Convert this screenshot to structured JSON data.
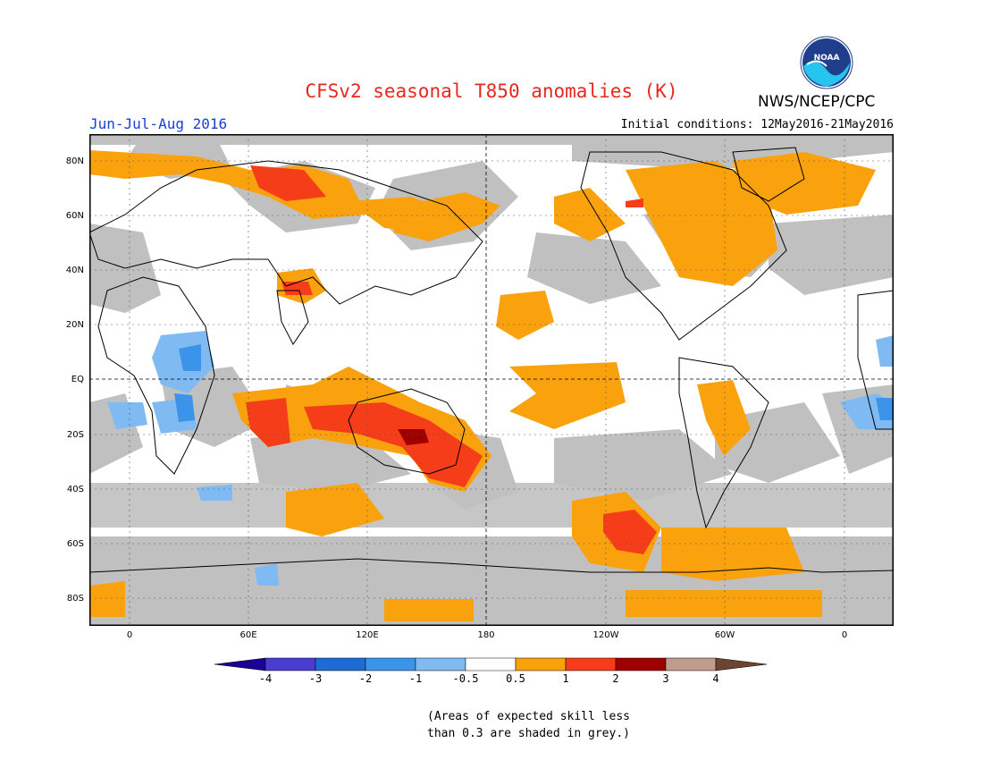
{
  "title": "CFSv2 seasonal T850 anomalies (K)",
  "agency": "NWS/NCEP/CPC",
  "logo_text": "NOAA",
  "season": "Jun-Jul-Aug 2016",
  "initial_conditions": "Initial conditions: 12May2016-21May2016",
  "lat_labels": [
    "80N",
    "60N",
    "40N",
    "20N",
    "EQ",
    "20S",
    "40S",
    "60S",
    "80S"
  ],
  "lon_labels": [
    "0",
    "60E",
    "120E",
    "180",
    "120W",
    "60W",
    "0"
  ],
  "colorbar": {
    "labels": [
      "-4",
      "-3",
      "-2",
      "-1",
      "-0.5",
      "0.5",
      "1",
      "2",
      "3",
      "4"
    ],
    "colors": [
      "#1d0095",
      "#4b3cd0",
      "#1e6ad6",
      "#3c94ea",
      "#7fbaf2",
      "#ffffff",
      "#f9a20e",
      "#f53d1a",
      "#9e0000",
      "#c19b8b",
      "#6d4332"
    ]
  },
  "note_line1": "(Areas of expected skill less",
  "note_line2": "than 0.3 are shaded in grey.)",
  "colors": {
    "grey": "#c0c0c0",
    "orange": "#f9a20e",
    "red": "#f53d1a",
    "darkred": "#9e0000",
    "lightblue": "#7fbaf2",
    "blue": "#3c94ea"
  }
}
